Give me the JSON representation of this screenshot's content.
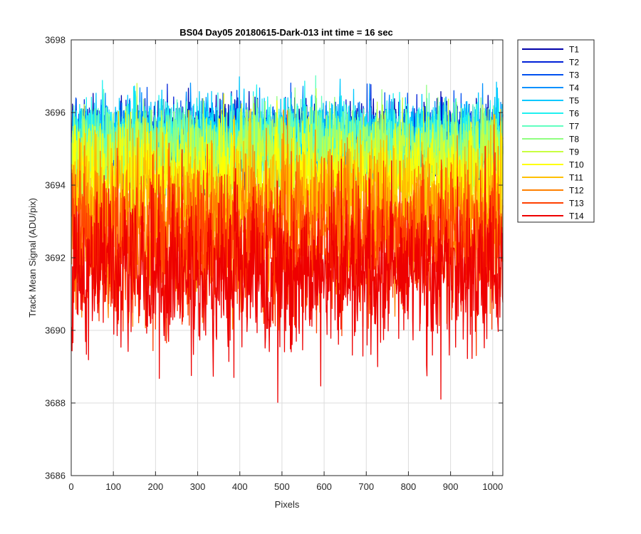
{
  "chart_data": {
    "type": "line",
    "title": "BS04 Day05 20180615-Dark-013 int time = 16 sec",
    "xlabel": "Pixels",
    "ylabel": "Track Mean Signal (ADU/pix)",
    "xlim": [
      0,
      1024
    ],
    "ylim": [
      3686,
      3698
    ],
    "xticks": [
      0,
      100,
      200,
      300,
      400,
      500,
      600,
      700,
      800,
      900,
      1000
    ],
    "xtick_labels": [
      "0",
      "100",
      "200",
      "300",
      "400",
      "500",
      "600",
      "700",
      "800",
      "900",
      "1000"
    ],
    "yticks": [
      3686,
      3688,
      3690,
      3692,
      3694,
      3696,
      3698
    ],
    "ytick_labels": [
      "3686",
      "3688",
      "3690",
      "3692",
      "3694",
      "3696",
      "3698"
    ],
    "grid": true,
    "legend_position": "outside-top-right",
    "x_range": [
      1,
      1024
    ],
    "series": [
      {
        "name": "T1",
        "color": "#0000aa",
        "mean": 3695.3,
        "std": 0.5,
        "min": 3693.6,
        "max": 3698.0
      },
      {
        "name": "T2",
        "color": "#0020d8",
        "mean": 3695.2,
        "std": 0.5,
        "min": 3693.5,
        "max": 3697.0
      },
      {
        "name": "T3",
        "color": "#0050f0",
        "mean": 3695.2,
        "std": 0.5,
        "min": 3693.5,
        "max": 3697.0
      },
      {
        "name": "T4",
        "color": "#0090ff",
        "mean": 3695.2,
        "std": 0.55,
        "min": 3693.5,
        "max": 3697.5
      },
      {
        "name": "T5",
        "color": "#00c8ff",
        "mean": 3695.3,
        "std": 0.55,
        "min": 3693.5,
        "max": 3697.5
      },
      {
        "name": "T6",
        "color": "#20f0f0",
        "mean": 3695.3,
        "std": 0.55,
        "min": 3693.5,
        "max": 3697.5
      },
      {
        "name": "T7",
        "color": "#60ffc0",
        "mean": 3695.1,
        "std": 0.55,
        "min": 3693.3,
        "max": 3697.5
      },
      {
        "name": "T8",
        "color": "#90ff80",
        "mean": 3695.0,
        "std": 0.6,
        "min": 3693.0,
        "max": 3697.8
      },
      {
        "name": "T9",
        "color": "#c8ff40",
        "mean": 3694.6,
        "std": 0.7,
        "min": 3692.5,
        "max": 3697.5
      },
      {
        "name": "T10",
        "color": "#ffff00",
        "mean": 3694.0,
        "std": 0.8,
        "min": 3691.5,
        "max": 3696.8
      },
      {
        "name": "T11",
        "color": "#ffc000",
        "mean": 3693.4,
        "std": 0.9,
        "min": 3690.5,
        "max": 3696.5
      },
      {
        "name": "T12",
        "color": "#ff8000",
        "mean": 3692.8,
        "std": 1.0,
        "min": 3690.0,
        "max": 3696.6
      },
      {
        "name": "T13",
        "color": "#ff4000",
        "mean": 3692.3,
        "std": 1.05,
        "min": 3689.0,
        "max": 3696.5
      },
      {
        "name": "T14",
        "color": "#ee0000",
        "mean": 3691.6,
        "std": 1.1,
        "min": 3687.9,
        "max": 3696.0
      }
    ]
  }
}
